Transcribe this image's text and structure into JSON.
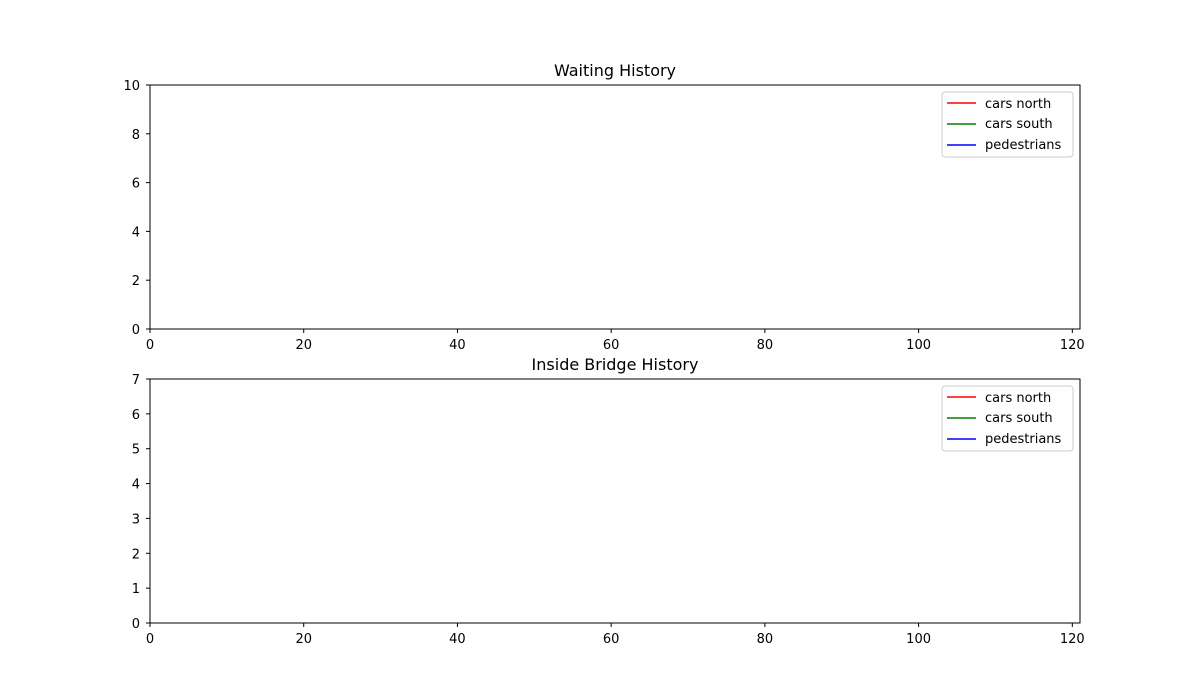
{
  "chart_data": [
    {
      "type": "line",
      "title": "Waiting History",
      "xlabel": "",
      "ylabel": "",
      "xlim": [
        0,
        121
      ],
      "ylim": [
        0,
        10
      ],
      "xticks": [
        0,
        20,
        40,
        60,
        80,
        100,
        120
      ],
      "yticks": [
        0,
        2,
        4,
        6,
        8,
        10
      ],
      "grid": false,
      "legend_placement": "top-right",
      "series": [
        {
          "name": "cars north",
          "color": "#ff0000",
          "x": [],
          "y": []
        },
        {
          "name": "cars south",
          "color": "#008000",
          "x": [],
          "y": []
        },
        {
          "name": "pedestrians",
          "color": "#0000ff",
          "x": [],
          "y": []
        }
      ]
    },
    {
      "type": "line",
      "title": "Inside Bridge History",
      "xlabel": "",
      "ylabel": "",
      "xlim": [
        0,
        121
      ],
      "ylim": [
        0,
        7
      ],
      "xticks": [
        0,
        20,
        40,
        60,
        80,
        100,
        120
      ],
      "yticks": [
        0,
        1,
        2,
        3,
        4,
        5,
        6,
        7
      ],
      "grid": false,
      "legend_placement": "top-right",
      "series": [
        {
          "name": "cars north",
          "color": "#ff0000",
          "x": [],
          "y": []
        },
        {
          "name": "cars south",
          "color": "#008000",
          "x": [],
          "y": []
        },
        {
          "name": "pedestrians",
          "color": "#0000ff",
          "x": [],
          "y": []
        }
      ]
    }
  ]
}
